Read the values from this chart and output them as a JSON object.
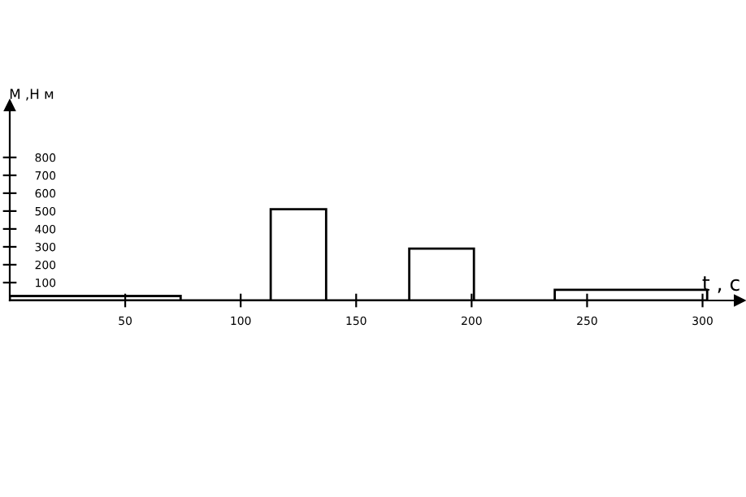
{
  "chart_data": {
    "type": "histogram",
    "xlabel": "t , с",
    "ylabel": "М ,Н м",
    "bins": [
      0,
      74,
      113,
      137,
      173,
      201,
      236,
      302
    ],
    "values": [
      25,
      0,
      510,
      0,
      290,
      0,
      60
    ],
    "color": "#000000",
    "xlim": [
      0,
      316
    ],
    "xticks": [
      50,
      100,
      150,
      200,
      250,
      300
    ],
    "ylim": [
      0,
      1090
    ],
    "yticks": [
      100,
      200,
      300,
      400,
      500,
      600,
      700,
      800
    ],
    "grid": false
  }
}
